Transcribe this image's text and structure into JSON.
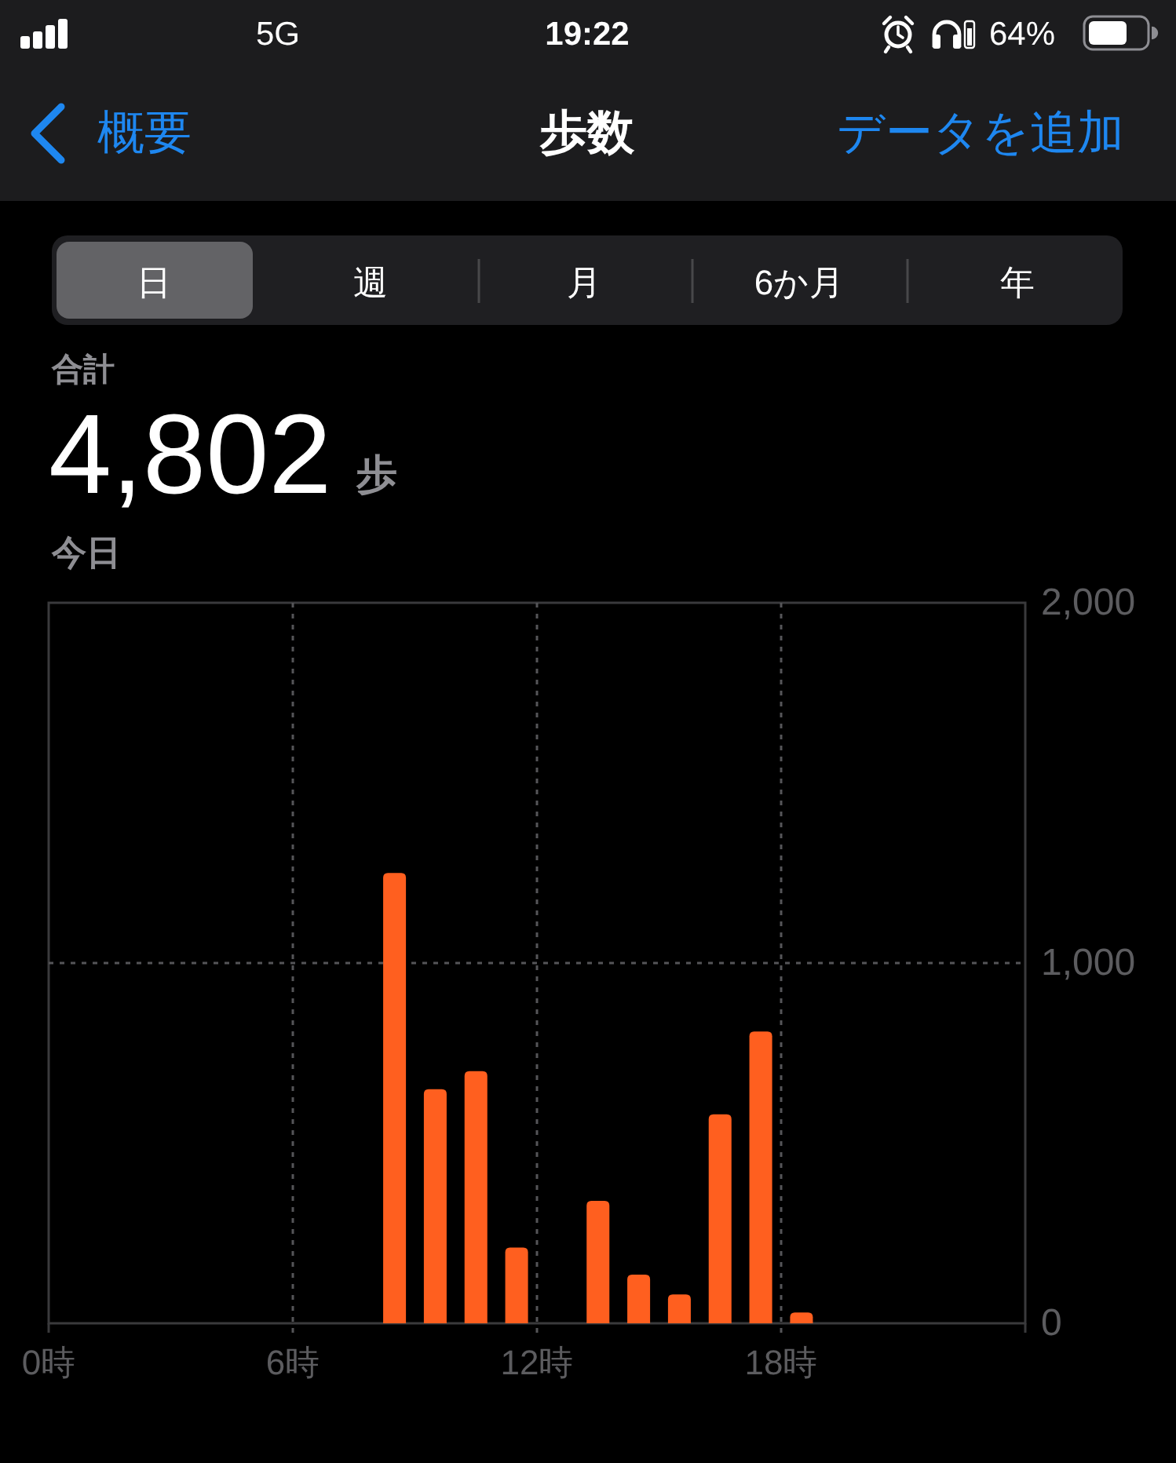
{
  "chart_data": {
    "type": "histogram",
    "title": "歩数",
    "bins": [
      8,
      9,
      10,
      11,
      12,
      13,
      14,
      15,
      16,
      17,
      18,
      19
    ],
    "values": [
      1250,
      650,
      700,
      210,
      0,
      340,
      135,
      80,
      580,
      810,
      30
    ],
    "color": "#ff5f1f",
    "xlim": [
      0,
      24
    ],
    "xticks": [
      {
        "value": 0,
        "label": "0時"
      },
      {
        "value": 6,
        "label": "6時"
      },
      {
        "value": 12,
        "label": "12時"
      },
      {
        "value": 18,
        "label": "18時"
      }
    ],
    "ylim": [
      0,
      2000
    ],
    "yticks": [
      0,
      {
        "value": 1000,
        "label": "1,000"
      },
      {
        "value": 2000,
        "label": "2,000"
      }
    ],
    "grid": true,
    "annotations": [
      "5G",
      "19:22",
      "64%",
      "概要",
      "データを追加",
      "日",
      "週",
      "月",
      "6か月",
      "年",
      "合計",
      "4,802",
      "歩",
      "今日"
    ]
  }
}
